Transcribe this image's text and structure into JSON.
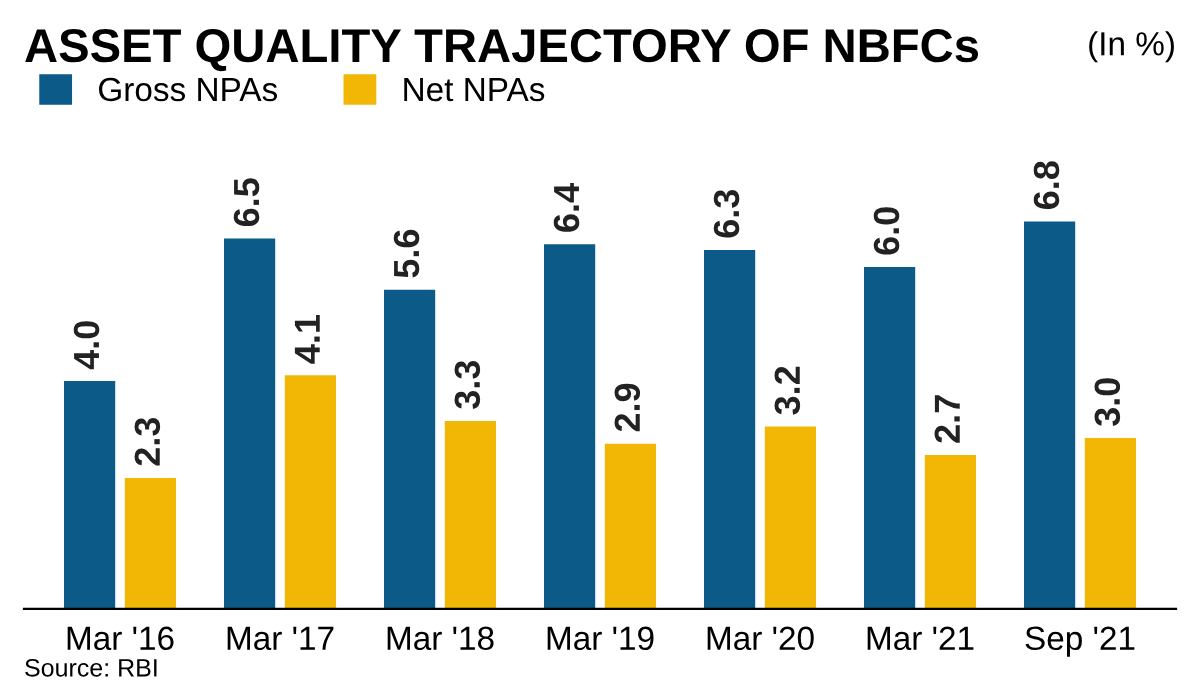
{
  "chart_data": {
    "type": "bar",
    "title": "ASSET QUALITY TRAJECTORY OF NBFCs",
    "subtitle": "(In %)",
    "categories": [
      "Mar '16",
      "Mar '17",
      "Mar '18",
      "Mar '19",
      "Mar '20",
      "Mar '21",
      "Sep '21"
    ],
    "series": [
      {
        "name": "Gross NPAs",
        "color": "#0b5a87",
        "values": [
          4.0,
          6.5,
          5.6,
          6.4,
          6.3,
          6.0,
          6.8
        ],
        "value_labels": [
          "4.0",
          "6.5",
          "5.6",
          "6.4",
          "6.3",
          "6.0",
          "6.8"
        ]
      },
      {
        "name": "Net NPAs",
        "color": "#f2b705",
        "values": [
          2.3,
          4.1,
          3.3,
          2.9,
          3.2,
          2.7,
          3.0
        ],
        "value_labels": [
          "2.3",
          "4.1",
          "3.3",
          "2.9",
          "3.2",
          "2.7",
          "3.0"
        ]
      }
    ],
    "legend": "top left",
    "grid": false,
    "annotations": [
      "Source: RBI"
    ]
  }
}
